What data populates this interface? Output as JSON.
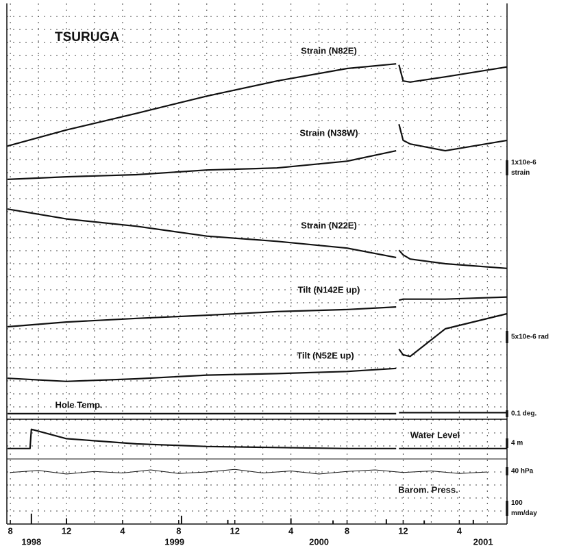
{
  "chart_data": {
    "type": "line",
    "title": "TSURUGA",
    "color": "#111111",
    "grid": true,
    "xlim": [
      -0.25,
      35.5
    ],
    "ylim": [
      0,
      100
    ],
    "xticks": [
      {
        "value": 0,
        "label": "8"
      },
      {
        "value": 4,
        "label": "12"
      },
      {
        "value": 8,
        "label": "4"
      },
      {
        "value": 12,
        "label": "8"
      },
      {
        "value": 16,
        "label": "12"
      },
      {
        "value": 20,
        "label": "4"
      },
      {
        "value": 24,
        "label": "8"
      },
      {
        "value": 28,
        "label": "12"
      },
      {
        "value": 32,
        "label": "4"
      }
    ],
    "years": [
      {
        "value": 1.5,
        "label": "1998"
      },
      {
        "value": 11.7,
        "label": "1999"
      },
      {
        "value": 22,
        "label": "2000"
      },
      {
        "value": 33.7,
        "label": "2001"
      }
    ],
    "xgrid": [
      0,
      2,
      4,
      6,
      8,
      10,
      12,
      14,
      16,
      18,
      20,
      22,
      24,
      26,
      28,
      30,
      32,
      34
    ],
    "ygrid": [
      2.5,
      5,
      7.5,
      10,
      12.5,
      15,
      17.5,
      20,
      22.5,
      25,
      27.5,
      30,
      32.5,
      35,
      37.5,
      40,
      42.5,
      45,
      47.5,
      50,
      52.5,
      55,
      57.5,
      60,
      62.5,
      65,
      67.5,
      70,
      72.5,
      75,
      77.5,
      80,
      82.5,
      85,
      87.5,
      90,
      92.5,
      95,
      97.5
    ],
    "x": [
      -0.2,
      4,
      9,
      14,
      19,
      24,
      27.5,
      27.6,
      27.7,
      28,
      28.5,
      31,
      35.4
    ],
    "series": [
      {
        "name": "Strain (N82E)",
        "values": [
          72.6,
          75.7,
          78.9,
          82.2,
          85.1,
          87.5,
          88.4,
          null,
          88.2,
          85.1,
          84.9,
          85.9,
          87.8
        ]
      },
      {
        "name": "Strain (N38W)",
        "values": [
          66.2,
          66.7,
          67.1,
          68.0,
          68.4,
          69.7,
          71.7,
          null,
          76.8,
          73.7,
          73.0,
          71.7,
          73.7
        ]
      },
      {
        "name": "Strain (N22E)",
        "values": [
          60.5,
          58.6,
          57.2,
          55.3,
          54.3,
          53.0,
          51.2,
          null,
          52.6,
          51.7,
          50.9,
          50.0,
          49.1
        ]
      },
      {
        "name": "Tilt (N142E up)",
        "values": [
          37.9,
          38.8,
          39.5,
          40.1,
          40.8,
          41.2,
          41.7,
          null,
          43.0,
          43.2,
          43.2,
          43.2,
          43.6
        ]
      },
      {
        "name": "Tilt (N52E up)",
        "values": [
          28.0,
          27.4,
          27.9,
          28.6,
          28.9,
          29.3,
          29.9,
          null,
          33.6,
          32.5,
          32.2,
          37.5,
          40.4
        ]
      },
      {
        "name": "Hole Temp.",
        "values": [
          21.2,
          21.2,
          21.2,
          21.2,
          21.2,
          21.2,
          21.2,
          null,
          21.4,
          21.4,
          21.4,
          21.4,
          21.4
        ]
      },
      {
        "name": "Water Level",
        "x": [
          -0.2,
          1.4,
          1.5,
          4,
          9,
          14,
          19,
          24,
          27.5,
          27.6,
          27.7,
          31,
          35.4
        ],
        "values": [
          14.5,
          14.5,
          18.2,
          16.4,
          15.4,
          14.9,
          14.7,
          14.5,
          14.5,
          null,
          14.5,
          14.5,
          14.5
        ]
      },
      {
        "name": "Barom. Press.",
        "x": [
          0,
          2,
          4,
          6,
          8,
          10,
          12,
          14,
          16,
          18,
          20,
          22,
          24,
          26,
          28,
          30,
          32,
          34
        ],
        "values": [
          9.9,
          10.3,
          9.6,
          10.1,
          9.8,
          10.4,
          9.7,
          10.0,
          10.5,
          9.8,
          10.2,
          9.6,
          10.1,
          10.4,
          9.9,
          10.2,
          9.7,
          10.0
        ]
      }
    ],
    "bars": {
      "x": [
        1.5,
        4,
        12.2,
        15.5,
        20,
        23,
        26.8,
        29.5,
        33
      ],
      "values": [
        2.0,
        1.1,
        1.6,
        0.8,
        1.1,
        0.7,
        0.9,
        0.7,
        0.8
      ]
    },
    "scales": [
      [
        "1x10e-6",
        "strain"
      ],
      [
        "5x10e-6 rad"
      ],
      [
        "0.1 deg."
      ],
      [
        "4 m"
      ],
      [
        "40 hPa"
      ],
      [
        "100",
        "mm/day"
      ]
    ]
  }
}
